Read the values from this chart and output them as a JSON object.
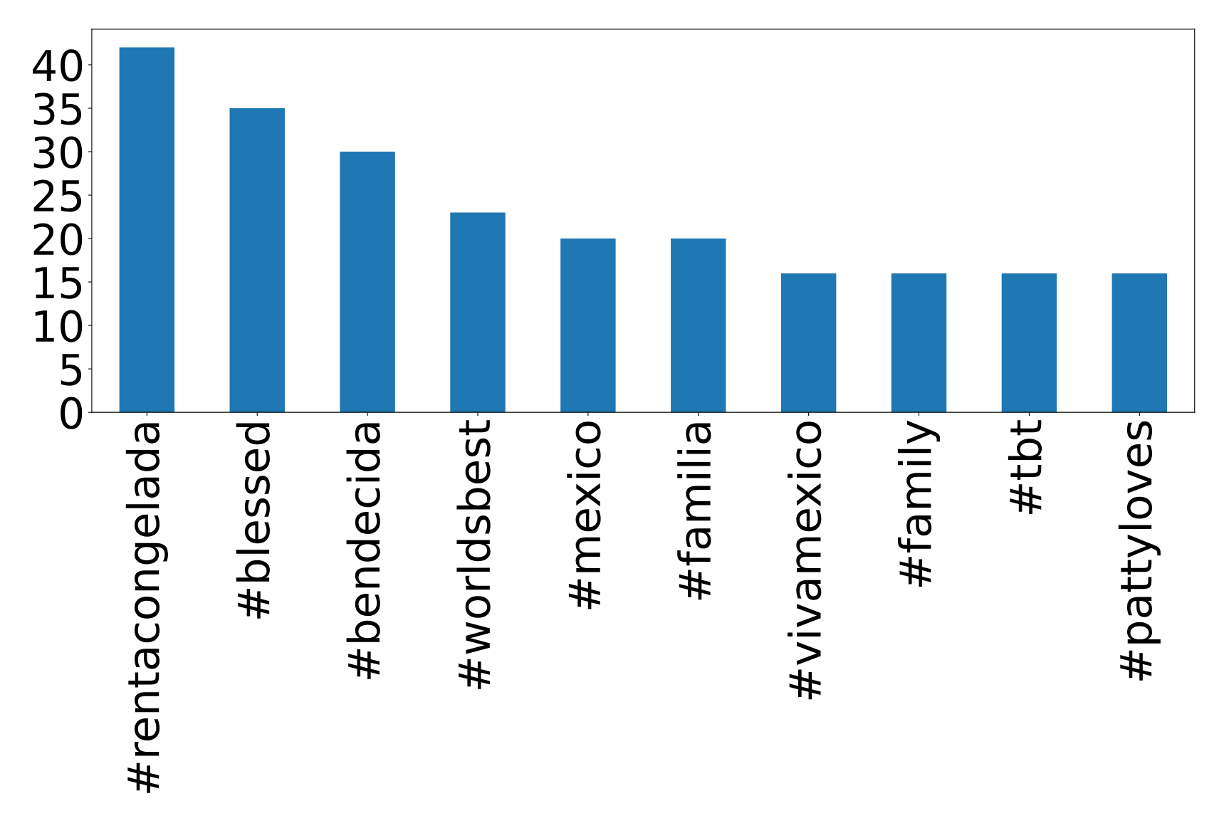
{
  "chart_data": {
    "type": "bar",
    "categories": [
      "#rentacongelada",
      "#blessed",
      "#bendecida",
      "#worldsbest",
      "#mexico",
      "#familia",
      "#vivamexico",
      "#family",
      "#tbt",
      "#pattyloves"
    ],
    "values": [
      42,
      35,
      30,
      23,
      20,
      20,
      16,
      16,
      16,
      16
    ],
    "color": "#1f77b4",
    "ylim": [
      0,
      44.1
    ],
    "yticks": [
      0,
      5,
      10,
      15,
      20,
      25,
      30,
      35,
      40
    ],
    "grid": false
  }
}
